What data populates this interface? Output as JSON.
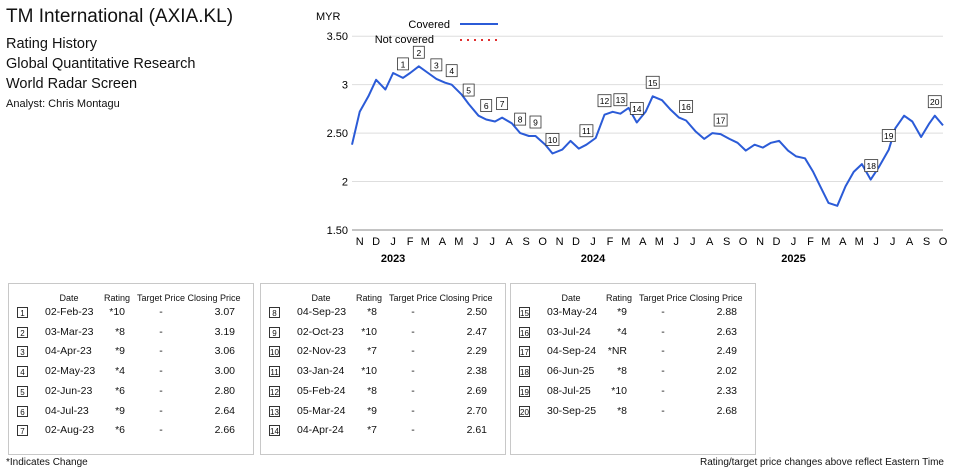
{
  "header": {
    "title": "TM International (AXIA.KL)",
    "sub1": "Rating History",
    "sub2": "Global Quantitative Research",
    "sub3": "World Radar Screen",
    "analyst": "Analyst: Chris Montagu"
  },
  "chart_data": {
    "type": "line",
    "ylabel": "MYR",
    "ylim": [
      1.5,
      3.75
    ],
    "yticks": [
      1.5,
      2,
      2.5,
      3,
      3.5
    ],
    "ytick_labels": [
      "1.50",
      "2",
      "2.50",
      "3",
      "3.50"
    ],
    "xrange": [
      "2022-11-01",
      "2025-10-15"
    ],
    "month_labels": [
      "N",
      "D",
      "J",
      "F",
      "M",
      "A",
      "M",
      "J",
      "J",
      "A",
      "S",
      "O",
      "N",
      "D",
      "J",
      "F",
      "M",
      "A",
      "M",
      "J",
      "J",
      "A",
      "S",
      "O",
      "N",
      "D",
      "J",
      "F",
      "M",
      "A",
      "M",
      "J",
      "J",
      "A",
      "S",
      "O"
    ],
    "year_labels": [
      {
        "label": "2023",
        "date": "2023-01-15"
      },
      {
        "label": "2024",
        "date": "2024-01-15"
      },
      {
        "label": "2025",
        "date": "2025-01-15"
      }
    ],
    "legend": {
      "covered": "Covered",
      "not_covered": "Not covered",
      "position": "top-left"
    },
    "colors": {
      "covered": "#2b5bd7",
      "not_covered": "#e03030"
    },
    "series": [
      {
        "name": "Covered",
        "points": [
          [
            "2022-11-01",
            2.38
          ],
          [
            "2022-11-15",
            2.72
          ],
          [
            "2022-12-01",
            2.88
          ],
          [
            "2022-12-15",
            3.05
          ],
          [
            "2023-01-01",
            2.95
          ],
          [
            "2023-01-15",
            3.12
          ],
          [
            "2023-02-02",
            3.07
          ],
          [
            "2023-02-15",
            3.12
          ],
          [
            "2023-03-03",
            3.19
          ],
          [
            "2023-03-20",
            3.12
          ],
          [
            "2023-04-04",
            3.06
          ],
          [
            "2023-04-20",
            3.02
          ],
          [
            "2023-05-02",
            3.0
          ],
          [
            "2023-05-20",
            2.9
          ],
          [
            "2023-06-02",
            2.8
          ],
          [
            "2023-06-20",
            2.68
          ],
          [
            "2023-07-04",
            2.64
          ],
          [
            "2023-07-20",
            2.62
          ],
          [
            "2023-08-02",
            2.66
          ],
          [
            "2023-08-20",
            2.6
          ],
          [
            "2023-09-04",
            2.5
          ],
          [
            "2023-09-20",
            2.47
          ],
          [
            "2023-10-02",
            2.47
          ],
          [
            "2023-10-20",
            2.38
          ],
          [
            "2023-11-02",
            2.29
          ],
          [
            "2023-11-20",
            2.33
          ],
          [
            "2023-12-05",
            2.42
          ],
          [
            "2023-12-20",
            2.34
          ],
          [
            "2024-01-03",
            2.38
          ],
          [
            "2024-01-20",
            2.45
          ],
          [
            "2024-02-05",
            2.69
          ],
          [
            "2024-02-20",
            2.72
          ],
          [
            "2024-03-05",
            2.7
          ],
          [
            "2024-03-20",
            2.76
          ],
          [
            "2024-04-04",
            2.61
          ],
          [
            "2024-04-20",
            2.72
          ],
          [
            "2024-05-03",
            2.88
          ],
          [
            "2024-05-20",
            2.84
          ],
          [
            "2024-06-05",
            2.74
          ],
          [
            "2024-06-20",
            2.66
          ],
          [
            "2024-07-03",
            2.63
          ],
          [
            "2024-07-20",
            2.52
          ],
          [
            "2024-08-05",
            2.44
          ],
          [
            "2024-08-20",
            2.5
          ],
          [
            "2024-09-04",
            2.49
          ],
          [
            "2024-09-20",
            2.44
          ],
          [
            "2024-10-05",
            2.4
          ],
          [
            "2024-10-20",
            2.32
          ],
          [
            "2024-11-05",
            2.38
          ],
          [
            "2024-11-20",
            2.35
          ],
          [
            "2024-12-05",
            2.4
          ],
          [
            "2024-12-20",
            2.42
          ],
          [
            "2025-01-05",
            2.32
          ],
          [
            "2025-01-20",
            2.26
          ],
          [
            "2025-02-05",
            2.24
          ],
          [
            "2025-02-20",
            2.1
          ],
          [
            "2025-03-05",
            1.95
          ],
          [
            "2025-03-20",
            1.78
          ],
          [
            "2025-04-05",
            1.75
          ],
          [
            "2025-04-20",
            1.95
          ],
          [
            "2025-05-05",
            2.1
          ],
          [
            "2025-05-20",
            2.18
          ],
          [
            "2025-06-05",
            2.02
          ],
          [
            "2025-06-20",
            2.15
          ],
          [
            "2025-07-08",
            2.33
          ],
          [
            "2025-07-20",
            2.55
          ],
          [
            "2025-08-05",
            2.68
          ],
          [
            "2025-08-20",
            2.62
          ],
          [
            "2025-09-05",
            2.46
          ],
          [
            "2025-09-20",
            2.6
          ],
          [
            "2025-09-30",
            2.68
          ],
          [
            "2025-10-15",
            2.58
          ]
        ]
      }
    ],
    "markers": [
      {
        "n": "1",
        "date": "2023-02-02",
        "value": 3.07
      },
      {
        "n": "2",
        "date": "2023-03-03",
        "value": 3.19
      },
      {
        "n": "3",
        "date": "2023-04-04",
        "value": 3.06
      },
      {
        "n": "4",
        "date": "2023-05-02",
        "value": 3.0
      },
      {
        "n": "5",
        "date": "2023-06-02",
        "value": 2.8
      },
      {
        "n": "6",
        "date": "2023-07-04",
        "value": 2.64
      },
      {
        "n": "7",
        "date": "2023-08-02",
        "value": 2.66
      },
      {
        "n": "8",
        "date": "2023-09-04",
        "value": 2.5
      },
      {
        "n": "9",
        "date": "2023-10-02",
        "value": 2.47
      },
      {
        "n": "10",
        "date": "2023-11-02",
        "value": 2.29
      },
      {
        "n": "11",
        "date": "2024-01-03",
        "value": 2.38
      },
      {
        "n": "12",
        "date": "2024-02-05",
        "value": 2.69
      },
      {
        "n": "13",
        "date": "2024-03-05",
        "value": 2.7
      },
      {
        "n": "14",
        "date": "2024-04-04",
        "value": 2.61
      },
      {
        "n": "15",
        "date": "2024-05-03",
        "value": 2.88
      },
      {
        "n": "16",
        "date": "2024-07-03",
        "value": 2.63
      },
      {
        "n": "17",
        "date": "2024-09-04",
        "value": 2.49
      },
      {
        "n": "18",
        "date": "2025-06-06",
        "value": 2.02
      },
      {
        "n": "19",
        "date": "2025-07-08",
        "value": 2.33
      },
      {
        "n": "20",
        "date": "2025-09-30",
        "value": 2.68
      }
    ]
  },
  "table": {
    "headers": {
      "date": "Date",
      "rating": "Rating",
      "target": "Target Price",
      "close": "Closing Price"
    },
    "columns": [
      [
        {
          "n": "1",
          "date": "02-Feb-23",
          "rating": "*10",
          "target": "-",
          "close": "3.07"
        },
        {
          "n": "2",
          "date": "03-Mar-23",
          "rating": "*8",
          "target": "-",
          "close": "3.19"
        },
        {
          "n": "3",
          "date": "04-Apr-23",
          "rating": "*9",
          "target": "-",
          "close": "3.06"
        },
        {
          "n": "4",
          "date": "02-May-23",
          "rating": "*4",
          "target": "-",
          "close": "3.00"
        },
        {
          "n": "5",
          "date": "02-Jun-23",
          "rating": "*6",
          "target": "-",
          "close": "2.80"
        },
        {
          "n": "6",
          "date": "04-Jul-23",
          "rating": "*9",
          "target": "-",
          "close": "2.64"
        },
        {
          "n": "7",
          "date": "02-Aug-23",
          "rating": "*6",
          "target": "-",
          "close": "2.66"
        }
      ],
      [
        {
          "n": "8",
          "date": "04-Sep-23",
          "rating": "*8",
          "target": "-",
          "close": "2.50"
        },
        {
          "n": "9",
          "date": "02-Oct-23",
          "rating": "*10",
          "target": "-",
          "close": "2.47"
        },
        {
          "n": "10",
          "date": "02-Nov-23",
          "rating": "*7",
          "target": "-",
          "close": "2.29"
        },
        {
          "n": "11",
          "date": "03-Jan-24",
          "rating": "*10",
          "target": "-",
          "close": "2.38"
        },
        {
          "n": "12",
          "date": "05-Feb-24",
          "rating": "*8",
          "target": "-",
          "close": "2.69"
        },
        {
          "n": "13",
          "date": "05-Mar-24",
          "rating": "*9",
          "target": "-",
          "close": "2.70"
        },
        {
          "n": "14",
          "date": "04-Apr-24",
          "rating": "*7",
          "target": "-",
          "close": "2.61"
        }
      ],
      [
        {
          "n": "15",
          "date": "03-May-24",
          "rating": "*9",
          "target": "-",
          "close": "2.88"
        },
        {
          "n": "16",
          "date": "03-Jul-24",
          "rating": "*4",
          "target": "-",
          "close": "2.63"
        },
        {
          "n": "17",
          "date": "04-Sep-24",
          "rating": "*NR",
          "target": "-",
          "close": "2.49"
        },
        {
          "n": "18",
          "date": "06-Jun-25",
          "rating": "*8",
          "target": "-",
          "close": "2.02"
        },
        {
          "n": "19",
          "date": "08-Jul-25",
          "rating": "*10",
          "target": "-",
          "close": "2.33"
        },
        {
          "n": "20",
          "date": "30-Sep-25",
          "rating": "*8",
          "target": "-",
          "close": "2.68"
        }
      ]
    ]
  },
  "footer": {
    "left": "*Indicates Change",
    "right": "Rating/target price changes above reflect Eastern Time"
  }
}
